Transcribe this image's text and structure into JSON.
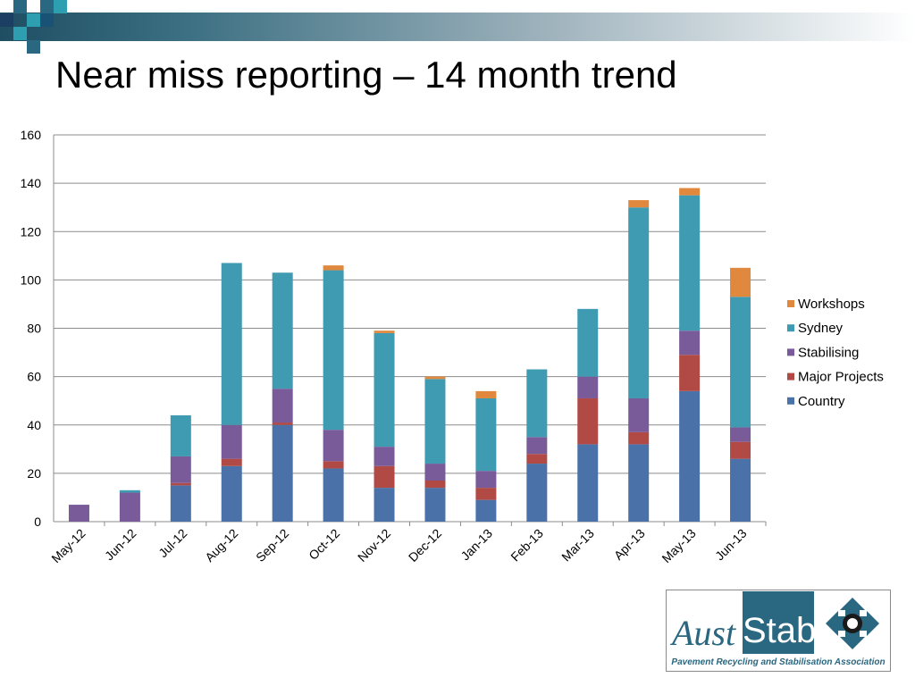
{
  "slide": {
    "title": "Near miss reporting – 14 month trend"
  },
  "logo": {
    "word_left": "Aust",
    "word_right": "Stab",
    "tagline": "Pavement Recycling and Stabilisation Association",
    "brand_color": "#2a6780"
  },
  "chart_data": {
    "type": "bar",
    "stacked": true,
    "title": "",
    "xlabel": "",
    "ylabel": "",
    "ylim": [
      0,
      160
    ],
    "yticks": [
      0,
      20,
      40,
      60,
      80,
      100,
      120,
      140,
      160
    ],
    "grid": true,
    "legend_position": "right",
    "categories": [
      "May-12",
      "Jun-12",
      "Jul-12",
      "Aug-12",
      "Sep-12",
      "Oct-12",
      "Nov-12",
      "Dec-12",
      "Jan-13",
      "Feb-13",
      "Mar-13",
      "Apr-13",
      "May-13",
      "Jun-13"
    ],
    "series": [
      {
        "name": "Country",
        "color": "#4a72a8",
        "values": [
          0,
          0,
          15,
          23,
          40,
          22,
          14,
          14,
          9,
          24,
          32,
          32,
          54,
          26
        ]
      },
      {
        "name": "Major Projects",
        "color": "#b14a45",
        "values": [
          0,
          0,
          1,
          3,
          1,
          3,
          9,
          3,
          5,
          4,
          19,
          5,
          15,
          7
        ]
      },
      {
        "name": "Stabilising",
        "color": "#7a5b9a",
        "values": [
          7,
          12,
          11,
          14,
          14,
          13,
          8,
          7,
          7,
          7,
          9,
          14,
          10,
          6
        ]
      },
      {
        "name": "Sydney",
        "color": "#3f9bb1",
        "values": [
          0,
          1,
          17,
          67,
          48,
          66,
          47,
          35,
          30,
          28,
          28,
          79,
          56,
          54
        ]
      },
      {
        "name": "Workshops",
        "color": "#e0883d",
        "values": [
          0,
          0,
          0,
          0,
          0,
          2,
          1,
          1,
          3,
          0,
          0,
          3,
          3,
          12
        ]
      }
    ]
  }
}
